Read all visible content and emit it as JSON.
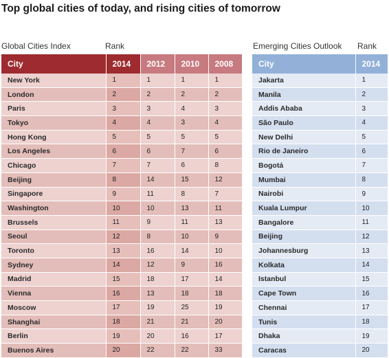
{
  "title": "Top global cities of today, and rising cities of tomorrow",
  "left": {
    "section_label": "Global Cities Index",
    "rank_label": "Rank",
    "header_city": "City",
    "years": [
      "2014",
      "2012",
      "2010",
      "2008"
    ]
  },
  "right": {
    "section_label": "Emerging Cities Outlook",
    "rank_label": "Rank",
    "header_city": "City",
    "year": "2014"
  },
  "colors": {
    "left_header_dark": "#9e2b2f",
    "left_header_light": "#c77a7f",
    "left_row_light": "#edd2d0",
    "left_row_dark": "#e3bdb9",
    "right_header": "#92b0d8",
    "right_row_light": "#e4ebf5",
    "right_row_dark": "#d3deef"
  },
  "chart_data": [
    {
      "type": "table",
      "title": "Global Cities Index",
      "columns": [
        "City",
        "2014",
        "2012",
        "2010",
        "2008"
      ],
      "rows": [
        [
          "New York",
          "1",
          "1",
          "1",
          "1"
        ],
        [
          "London",
          "2",
          "2",
          "2",
          "2"
        ],
        [
          "Paris",
          "3",
          "3",
          "4",
          "3"
        ],
        [
          "Tokyo",
          "4",
          "4",
          "3",
          "4"
        ],
        [
          "Hong Kong",
          "5",
          "5",
          "5",
          "5"
        ],
        [
          "Los Angeles",
          "6",
          "6",
          "7",
          "6"
        ],
        [
          "Chicago",
          "7",
          "7",
          "6",
          "8"
        ],
        [
          "Beijing",
          "8",
          "14",
          "15",
          "12"
        ],
        [
          "Singapore",
          "9",
          "11",
          "8",
          "7"
        ],
        [
          "Washington",
          "10",
          "10",
          "13",
          "11"
        ],
        [
          "Brussels",
          "11",
          "9",
          "11",
          "13"
        ],
        [
          "Seoul",
          "12",
          "8",
          "10",
          "9"
        ],
        [
          "Toronto",
          "13",
          "16",
          "14",
          "10"
        ],
        [
          "Sydney",
          "14",
          "12",
          "9",
          "16"
        ],
        [
          "Madrid",
          "15",
          "18",
          "17",
          "14"
        ],
        [
          "Vienna",
          "16",
          "13",
          "18",
          "18"
        ],
        [
          "Moscow",
          "17",
          "19",
          "25",
          "19"
        ],
        [
          "Shanghai",
          "18",
          "21",
          "21",
          "20"
        ],
        [
          "Berlin",
          "19",
          "20",
          "16",
          "17"
        ],
        [
          "Buenos Aires",
          "20",
          "22",
          "22",
          "33"
        ]
      ]
    },
    {
      "type": "table",
      "title": "Emerging Cities Outlook",
      "columns": [
        "City",
        "2014"
      ],
      "rows": [
        [
          "Jakarta",
          "1"
        ],
        [
          "Manila",
          "2"
        ],
        [
          "Addis Ababa",
          "3"
        ],
        [
          "São Paulo",
          "4"
        ],
        [
          "New Delhi",
          "5"
        ],
        [
          "Rio de Janeiro",
          "6"
        ],
        [
          "Bogotá",
          "7"
        ],
        [
          "Mumbai",
          "8"
        ],
        [
          "Nairobi",
          "9"
        ],
        [
          "Kuala Lumpur",
          "10"
        ],
        [
          "Bangalore",
          "11"
        ],
        [
          "Beijing",
          "12"
        ],
        [
          "Johannesburg",
          "13"
        ],
        [
          "Kolkata",
          "14"
        ],
        [
          "Istanbul",
          "15"
        ],
        [
          "Cape Town",
          "16"
        ],
        [
          "Chennai",
          "17"
        ],
        [
          "Tunis",
          "18"
        ],
        [
          "Dhaka",
          "19"
        ],
        [
          "Caracas",
          "20"
        ]
      ]
    }
  ]
}
